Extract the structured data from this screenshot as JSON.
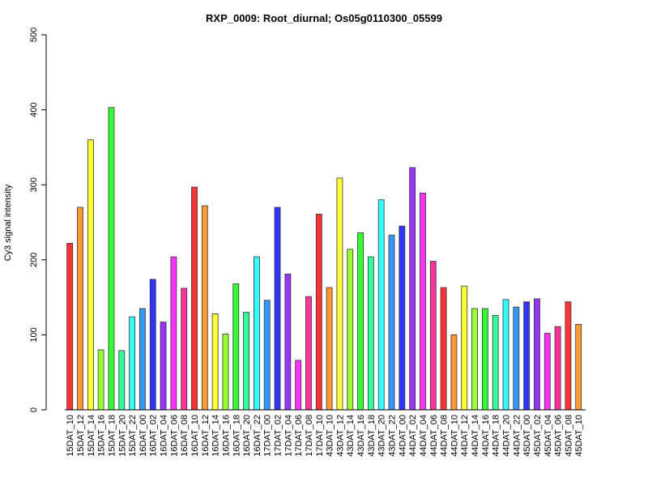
{
  "chart_data": {
    "type": "bar",
    "title": "RXP_0009: Root_diurnal; Os05g0110300_05599",
    "xlabel": "",
    "ylabel": "Cy3 signal intensity",
    "ylim": [
      0,
      500
    ],
    "yticks": [
      0,
      100,
      200,
      300,
      400,
      500
    ],
    "grid": false,
    "categories": [
      "15DAT_10",
      "15DAT_12",
      "15DAT_14",
      "15DAT_16",
      "15DAT_18",
      "15DAT_20",
      "15DAT_22",
      "16DAT_00",
      "16DAT_02",
      "16DAT_04",
      "16DAT_06",
      "16DAT_08",
      "16DAT_10",
      "16DAT_12",
      "16DAT_14",
      "16DAT_16",
      "16DAT_18",
      "16DAT_20",
      "16DAT_22",
      "17DAT_00",
      "17DAT_02",
      "17DAT_04",
      "17DAT_06",
      "17DAT_08",
      "17DAT_10",
      "43DAT_10",
      "43DAT_12",
      "43DAT_14",
      "43DAT_16",
      "43DAT_18",
      "43DAT_20",
      "43DAT_22",
      "44DAT_00",
      "44DAT_02",
      "44DAT_04",
      "44DAT_06",
      "44DAT_08",
      "44DAT_10",
      "44DAT_12",
      "44DAT_14",
      "44DAT_16",
      "44DAT_18",
      "44DAT_20",
      "44DAT_22",
      "45DAT_00",
      "45DAT_02",
      "45DAT_04",
      "45DAT_06",
      "45DAT_08",
      "45DAT_10"
    ],
    "values": [
      222,
      270,
      360,
      80,
      403,
      79,
      124,
      135,
      174,
      117,
      204,
      162,
      297,
      272,
      128,
      101,
      168,
      130,
      204,
      146,
      270,
      181,
      66,
      151,
      261,
      163,
      309,
      214,
      236,
      204,
      280,
      233,
      245,
      323,
      289,
      198,
      163,
      100,
      165,
      135,
      135,
      126,
      147,
      137,
      144,
      148,
      102,
      111,
      144,
      114
    ],
    "color_cycle": [
      "#ff3333",
      "#ff9933",
      "#ffff33",
      "#99ff33",
      "#33ff33",
      "#33ff99",
      "#33ffff",
      "#3399ff",
      "#3333ff",
      "#9933ff",
      "#ff33ff",
      "#ff3399"
    ]
  }
}
